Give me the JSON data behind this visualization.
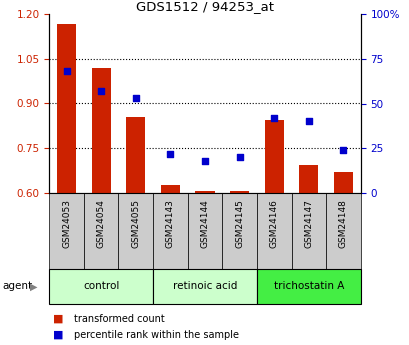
{
  "title": "GDS1512 / 94253_at",
  "samples": [
    "GSM24053",
    "GSM24054",
    "GSM24055",
    "GSM24143",
    "GSM24144",
    "GSM24145",
    "GSM24146",
    "GSM24147",
    "GSM24148"
  ],
  "transformed_count": [
    1.165,
    1.02,
    0.855,
    0.628,
    0.607,
    0.607,
    0.845,
    0.695,
    0.672
  ],
  "percentile_rank": [
    68,
    57,
    53,
    22,
    18,
    20,
    42,
    40,
    24
  ],
  "bar_bottom": 0.6,
  "ylim_left": [
    0.6,
    1.2
  ],
  "ylim_right": [
    0,
    100
  ],
  "yticks_left": [
    0.6,
    0.75,
    0.9,
    1.05,
    1.2
  ],
  "yticks_right": [
    0,
    25,
    50,
    75,
    100
  ],
  "ytick_labels_right": [
    "0",
    "25",
    "50",
    "75",
    "100%"
  ],
  "bar_color": "#cc2200",
  "dot_color": "#0000cc",
  "legend_items": [
    "transformed count",
    "percentile rank within the sample"
  ],
  "legend_colors": [
    "#cc2200",
    "#0000cc"
  ],
  "group_defs": [
    {
      "start": 0,
      "end": 2,
      "label": "control",
      "color": "#ccffcc"
    },
    {
      "start": 3,
      "end": 5,
      "label": "retinoic acid",
      "color": "#ccffcc"
    },
    {
      "start": 6,
      "end": 8,
      "label": "trichostatin A",
      "color": "#44ee44"
    }
  ],
  "cell_color": "#cccccc",
  "bar_width": 0.55
}
